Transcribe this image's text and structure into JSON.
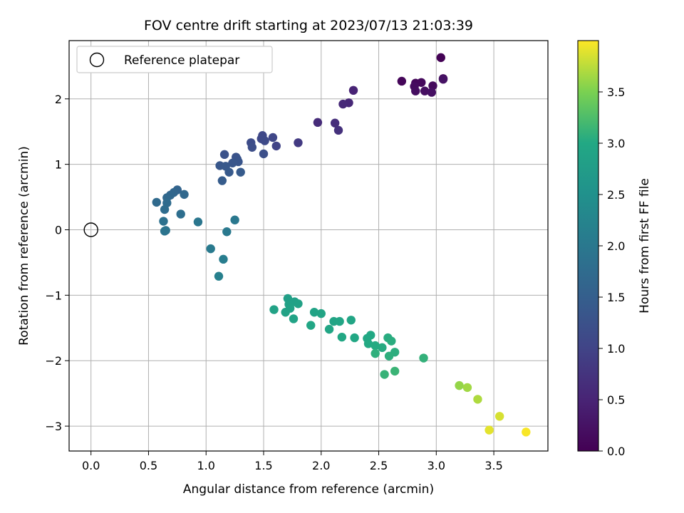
{
  "chart_data": {
    "type": "scatter",
    "title": "FOV centre drift starting at 2023/07/13 21:03:39",
    "xlabel": "Angular distance from reference (arcmin)",
    "ylabel": "Rotation from reference (arcmin)",
    "xlim": [
      -0.19,
      3.97
    ],
    "ylim": [
      -3.38,
      2.89
    ],
    "xticks": [
      0.0,
      0.5,
      1.0,
      1.5,
      2.0,
      2.5,
      3.0,
      3.5
    ],
    "xtick_labels": [
      "0.0",
      "0.5",
      "1.0",
      "1.5",
      "2.0",
      "2.5",
      "3.0",
      "3.5"
    ],
    "yticks": [
      -3,
      -2,
      -1,
      0,
      1,
      2
    ],
    "ytick_labels": [
      "−3",
      "−2",
      "−1",
      "0",
      "1",
      "2"
    ],
    "grid": true,
    "legend": {
      "placement": "upper-left",
      "entries": [
        "Reference platepar"
      ]
    },
    "reference_point": {
      "x": 0.0,
      "y": 0.0,
      "label": "Reference platepar"
    },
    "colorbar": {
      "label": "Hours from first FF file",
      "colormap": "viridis",
      "range": [
        0.0,
        4.0
      ],
      "ticks": [
        0.0,
        0.5,
        1.0,
        1.5,
        2.0,
        2.5,
        3.0,
        3.5
      ],
      "tick_labels": [
        "0.0",
        "0.5",
        "1.0",
        "1.5",
        "2.0",
        "2.5",
        "3.0",
        "3.5"
      ]
    },
    "points": [
      {
        "x": 3.04,
        "y": 2.63,
        "t": 0.02
      },
      {
        "x": 3.06,
        "y": 2.31,
        "t": 0.05
      },
      {
        "x": 2.7,
        "y": 2.27,
        "t": 0.07
      },
      {
        "x": 2.82,
        "y": 2.24,
        "t": 0.1
      },
      {
        "x": 2.87,
        "y": 2.25,
        "t": 0.12
      },
      {
        "x": 2.97,
        "y": 2.2,
        "t": 0.14
      },
      {
        "x": 2.81,
        "y": 2.19,
        "t": 0.16
      },
      {
        "x": 2.82,
        "y": 2.12,
        "t": 0.18
      },
      {
        "x": 2.9,
        "y": 2.12,
        "t": 0.2
      },
      {
        "x": 2.96,
        "y": 2.1,
        "t": 0.22
      },
      {
        "x": 3.06,
        "y": 2.3,
        "t": 0.24
      },
      {
        "x": 2.28,
        "y": 2.13,
        "t": 0.5
      },
      {
        "x": 2.24,
        "y": 1.94,
        "t": 0.55
      },
      {
        "x": 2.19,
        "y": 1.92,
        "t": 0.58
      },
      {
        "x": 1.97,
        "y": 1.64,
        "t": 0.62
      },
      {
        "x": 2.12,
        "y": 1.63,
        "t": 0.66
      },
      {
        "x": 2.15,
        "y": 1.52,
        "t": 0.7
      },
      {
        "x": 1.8,
        "y": 1.33,
        "t": 0.85
      },
      {
        "x": 1.61,
        "y": 1.28,
        "t": 1.0
      },
      {
        "x": 1.58,
        "y": 1.41,
        "t": 1.05
      },
      {
        "x": 1.49,
        "y": 1.44,
        "t": 1.08
      },
      {
        "x": 1.48,
        "y": 1.39,
        "t": 1.1
      },
      {
        "x": 1.51,
        "y": 1.36,
        "t": 1.12
      },
      {
        "x": 1.39,
        "y": 1.33,
        "t": 1.15
      },
      {
        "x": 1.4,
        "y": 1.26,
        "t": 1.18
      },
      {
        "x": 1.5,
        "y": 1.16,
        "t": 1.2
      },
      {
        "x": 1.16,
        "y": 1.15,
        "t": 1.25
      },
      {
        "x": 1.26,
        "y": 1.11,
        "t": 1.28
      },
      {
        "x": 1.27,
        "y": 1.08,
        "t": 1.3
      },
      {
        "x": 1.28,
        "y": 1.04,
        "t": 1.32
      },
      {
        "x": 1.23,
        "y": 1.02,
        "t": 1.34
      },
      {
        "x": 1.12,
        "y": 0.98,
        "t": 1.36
      },
      {
        "x": 1.17,
        "y": 0.97,
        "t": 1.38
      },
      {
        "x": 1.2,
        "y": 0.88,
        "t": 1.4
      },
      {
        "x": 1.3,
        "y": 0.88,
        "t": 1.42
      },
      {
        "x": 1.14,
        "y": 0.75,
        "t": 1.44
      },
      {
        "x": 0.75,
        "y": 0.61,
        "t": 1.6
      },
      {
        "x": 0.72,
        "y": 0.57,
        "t": 1.63
      },
      {
        "x": 0.69,
        "y": 0.53,
        "t": 1.66
      },
      {
        "x": 0.81,
        "y": 0.54,
        "t": 1.68
      },
      {
        "x": 0.66,
        "y": 0.49,
        "t": 1.7
      },
      {
        "x": 0.57,
        "y": 0.42,
        "t": 1.72
      },
      {
        "x": 0.66,
        "y": 0.41,
        "t": 1.75
      },
      {
        "x": 0.64,
        "y": 0.31,
        "t": 1.78
      },
      {
        "x": 0.78,
        "y": 0.24,
        "t": 1.8
      },
      {
        "x": 0.63,
        "y": 0.13,
        "t": 1.85
      },
      {
        "x": 0.65,
        "y": -0.01,
        "t": 1.9
      },
      {
        "x": 0.64,
        "y": -0.02,
        "t": 1.92
      },
      {
        "x": 0.93,
        "y": 0.12,
        "t": 1.95
      },
      {
        "x": 1.25,
        "y": 0.15,
        "t": 2.0
      },
      {
        "x": 1.18,
        "y": -0.03,
        "t": 2.02
      },
      {
        "x": 1.04,
        "y": -0.29,
        "t": 2.05
      },
      {
        "x": 1.15,
        "y": -0.45,
        "t": 2.1
      },
      {
        "x": 1.11,
        "y": -0.71,
        "t": 2.15
      },
      {
        "x": 1.71,
        "y": -1.05,
        "t": 2.8
      },
      {
        "x": 1.77,
        "y": -1.1,
        "t": 2.82
      },
      {
        "x": 1.72,
        "y": -1.14,
        "t": 2.84
      },
      {
        "x": 1.8,
        "y": -1.13,
        "t": 2.85
      },
      {
        "x": 1.73,
        "y": -1.2,
        "t": 2.86
      },
      {
        "x": 1.59,
        "y": -1.22,
        "t": 2.87
      },
      {
        "x": 1.69,
        "y": -1.26,
        "t": 2.88
      },
      {
        "x": 1.76,
        "y": -1.36,
        "t": 2.89
      },
      {
        "x": 1.94,
        "y": -1.26,
        "t": 2.9
      },
      {
        "x": 2.0,
        "y": -1.28,
        "t": 2.91
      },
      {
        "x": 2.11,
        "y": -1.4,
        "t": 2.92
      },
      {
        "x": 2.16,
        "y": -1.4,
        "t": 2.93
      },
      {
        "x": 2.26,
        "y": -1.38,
        "t": 2.94
      },
      {
        "x": 1.91,
        "y": -1.46,
        "t": 2.95
      },
      {
        "x": 2.07,
        "y": -1.52,
        "t": 2.96
      },
      {
        "x": 2.18,
        "y": -1.64,
        "t": 2.97
      },
      {
        "x": 2.29,
        "y": -1.65,
        "t": 2.98
      },
      {
        "x": 2.43,
        "y": -1.61,
        "t": 2.99
      },
      {
        "x": 2.4,
        "y": -1.66,
        "t": 3.0
      },
      {
        "x": 2.41,
        "y": -1.74,
        "t": 3.01
      },
      {
        "x": 2.47,
        "y": -1.77,
        "t": 3.02
      },
      {
        "x": 2.53,
        "y": -1.8,
        "t": 3.03
      },
      {
        "x": 2.58,
        "y": -1.65,
        "t": 3.04
      },
      {
        "x": 2.61,
        "y": -1.7,
        "t": 3.05
      },
      {
        "x": 2.64,
        "y": -1.87,
        "t": 3.06
      },
      {
        "x": 2.59,
        "y": -1.93,
        "t": 3.07
      },
      {
        "x": 2.47,
        "y": -1.89,
        "t": 3.08
      },
      {
        "x": 2.89,
        "y": -1.96,
        "t": 3.1
      },
      {
        "x": 2.55,
        "y": -2.21,
        "t": 3.12
      },
      {
        "x": 2.64,
        "y": -2.16,
        "t": 3.14
      },
      {
        "x": 3.2,
        "y": -2.38,
        "t": 3.6
      },
      {
        "x": 3.27,
        "y": -2.41,
        "t": 3.65
      },
      {
        "x": 3.36,
        "y": -2.59,
        "t": 3.7
      },
      {
        "x": 3.55,
        "y": -2.85,
        "t": 3.85
      },
      {
        "x": 3.46,
        "y": -3.06,
        "t": 3.9
      },
      {
        "x": 3.78,
        "y": -3.09,
        "t": 3.98
      }
    ]
  }
}
